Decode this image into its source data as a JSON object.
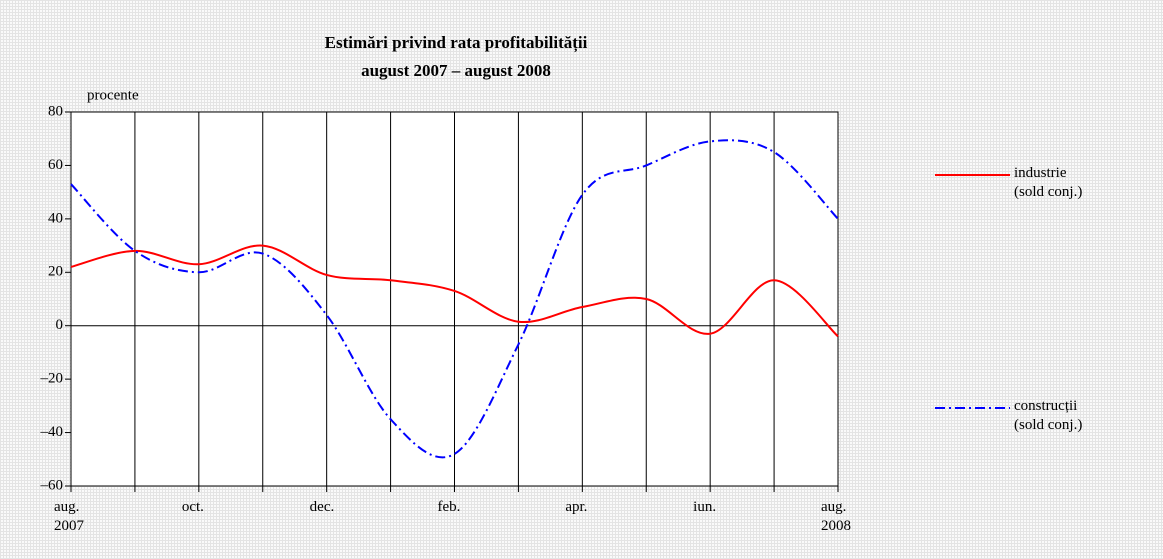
{
  "chart_data": {
    "type": "line",
    "title": "Estimări privind rata profitabilității",
    "subtitle": "august 2007 – august 2008",
    "y_label": "procente",
    "categories": [
      "aug.\n2007",
      null,
      "oct.",
      null,
      "dec.",
      null,
      "feb.",
      null,
      "apr.",
      null,
      "iun.",
      null,
      "aug.\n2008"
    ],
    "series": [
      {
        "name": "industrie\n(sold conj.)",
        "color": "#ff0000",
        "dash": "solid",
        "values": [
          22,
          28,
          23,
          30,
          19,
          17,
          13,
          1.5,
          7,
          10,
          -3,
          17,
          -4
        ]
      },
      {
        "name": "construcții\n(sold conj.)",
        "color": "#0000ff",
        "dash": "dashdot",
        "values": [
          53,
          28,
          20,
          27,
          4,
          -35,
          -48,
          -7,
          49,
          60,
          69,
          65,
          40
        ]
      }
    ],
    "ylim": [
      -60,
      80
    ],
    "yticks": [
      {
        "value": -60,
        "label": "–60"
      },
      {
        "value": -40,
        "label": "–40"
      },
      {
        "value": -20,
        "label": "–20"
      },
      0,
      20,
      40,
      60,
      80
    ],
    "vertical_grid": true
  }
}
